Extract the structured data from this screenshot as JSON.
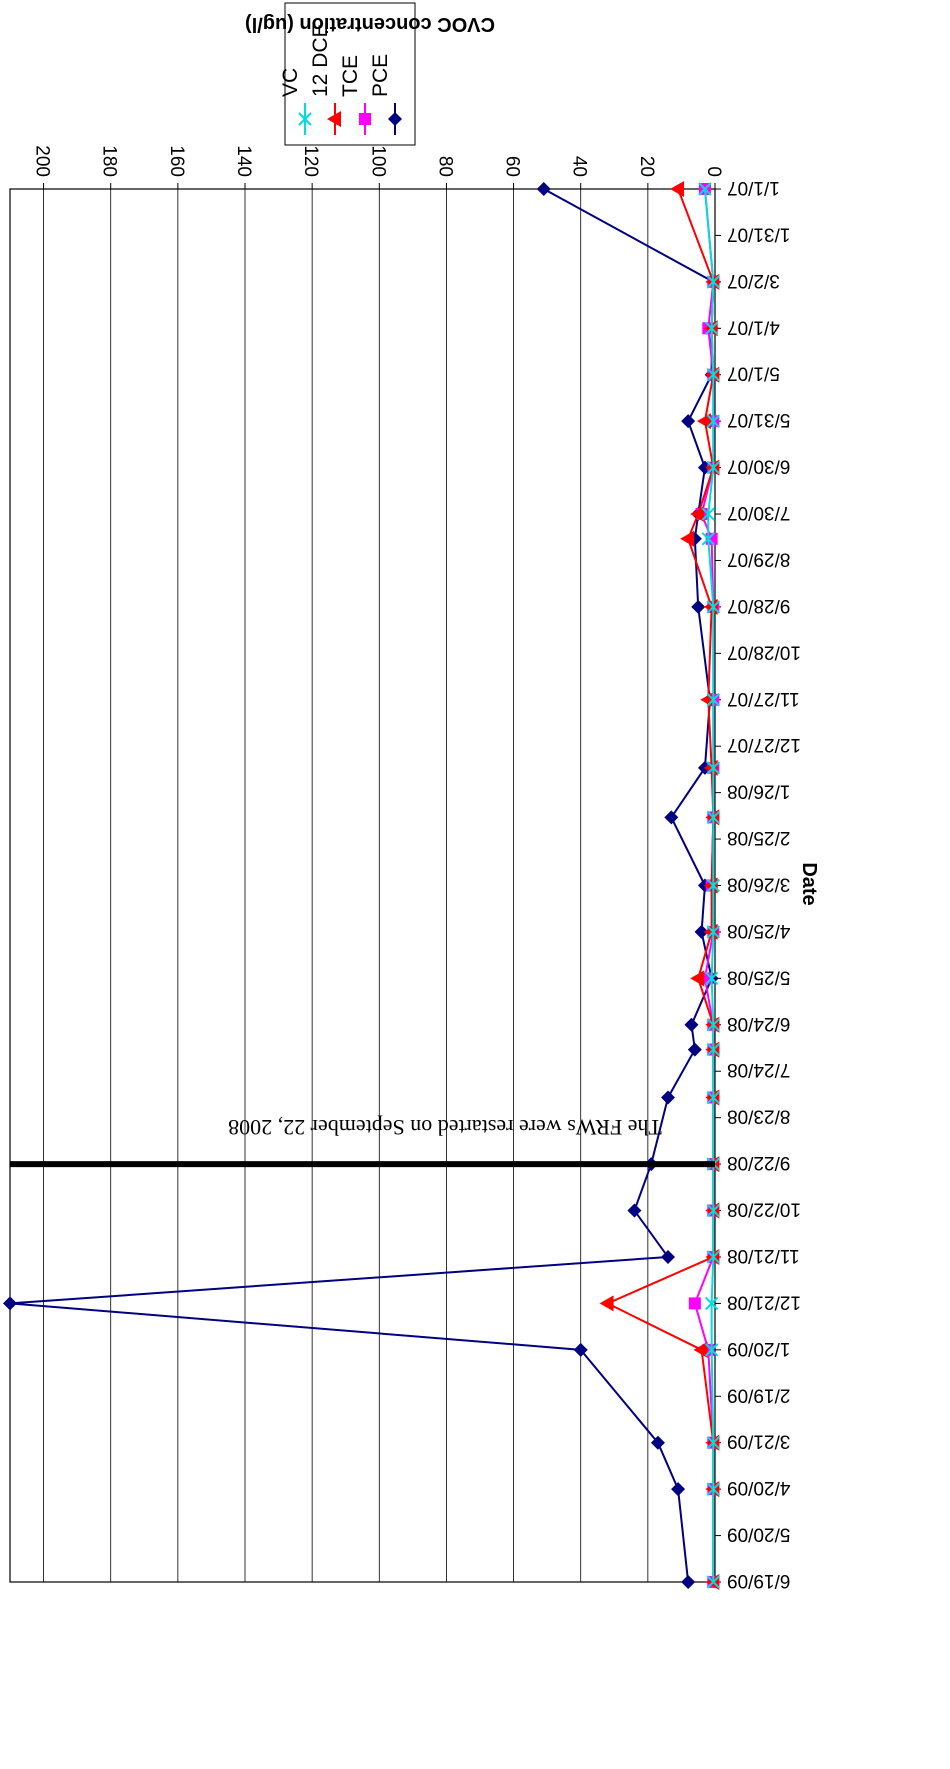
{
  "chart_data": {
    "type": "line",
    "title": "",
    "xlabel": "Date",
    "ylabel": "CVOC concentration (ug/l)",
    "ylim": [
      0,
      210
    ],
    "yticks": [
      "0",
      "20",
      "40",
      "60",
      "80",
      "100",
      "120",
      "140",
      "160",
      "180",
      "200"
    ],
    "grid": true,
    "legend_position": "top-right",
    "rotation": "rotated 180 degrees",
    "xtick_labels": [
      "1/1/07",
      "1/31/07",
      "3/2/07",
      "4/1/07",
      "5/1/07",
      "5/31/07",
      "6/30/07",
      "7/30/07",
      "8/29/07",
      "9/28/07",
      "10/28/07",
      "11/27/07",
      "12/27/07",
      "1/26/08",
      "2/25/08",
      "3/26/08",
      "4/25/08",
      "5/25/08",
      "6/24/08",
      "7/24/08",
      "8/23/08",
      "9/22/08",
      "10/22/08",
      "11/21/08",
      "12/21/08",
      "1/20/09",
      "2/19/09",
      "3/21/09",
      "4/20/09",
      "5/20/09",
      "6/19/09"
    ],
    "dates": [
      "1/1/07",
      "3/2/07",
      "4/1/07",
      "5/1/07",
      "5/31/07",
      "6/30/07",
      "7/30/07",
      "8/15/07",
      "9/28/07",
      "11/27/07",
      "1/10/08",
      "2/11/08",
      "3/26/08",
      "4/25/08",
      "5/25/08",
      "6/24/08",
      "7/10/08",
      "8/10/08",
      "9/22/08",
      "10/22/08",
      "11/21/08",
      "12/21/08",
      "1/20/09",
      "3/21/09",
      "4/20/09",
      "6/19/09"
    ],
    "series": [
      {
        "name": "PCE",
        "color": "#000080",
        "marker": "diamond",
        "values": [
          51,
          0.5,
          1,
          1,
          8,
          3,
          5,
          6,
          5,
          1.5,
          3,
          13,
          3,
          4,
          1,
          7,
          6,
          14,
          19,
          24,
          14,
          210,
          40,
          17,
          11,
          8
        ]
      },
      {
        "name": "TCE",
        "color": "#ff00ff",
        "marker": "square",
        "values": [
          3,
          0.5,
          2,
          0.5,
          0.5,
          0.5,
          4,
          1,
          0.5,
          0.5,
          0.5,
          0.5,
          1,
          0.5,
          3,
          0.5,
          0.5,
          0.5,
          0.5,
          0.5,
          0.5,
          6,
          2,
          0.5,
          0.5,
          0.5
        ]
      },
      {
        "name": "12 DCE",
        "color": "#ff0000",
        "marker": "triangle",
        "values": [
          11,
          0.5,
          1,
          0.5,
          3,
          0.5,
          5,
          8,
          1,
          2,
          1,
          0.5,
          1,
          1,
          5,
          0.5,
          0.5,
          0.5,
          0.5,
          0.5,
          0.5,
          32,
          4,
          0.5,
          0.5,
          0.5
        ]
      },
      {
        "name": "VC",
        "color": "#00dddd",
        "marker": "x",
        "values": [
          3,
          0.5,
          1,
          0.5,
          0.5,
          0.5,
          2,
          2,
          0.5,
          0.5,
          0.5,
          0.5,
          0.5,
          0.5,
          1,
          0.5,
          0.5,
          0.5,
          0.5,
          0.5,
          0.5,
          1,
          1,
          0.5,
          0.5,
          0.5
        ]
      }
    ],
    "annotation": {
      "text": "The FRWs were restarted on September 22, 2008",
      "date": "9/22/08"
    }
  }
}
